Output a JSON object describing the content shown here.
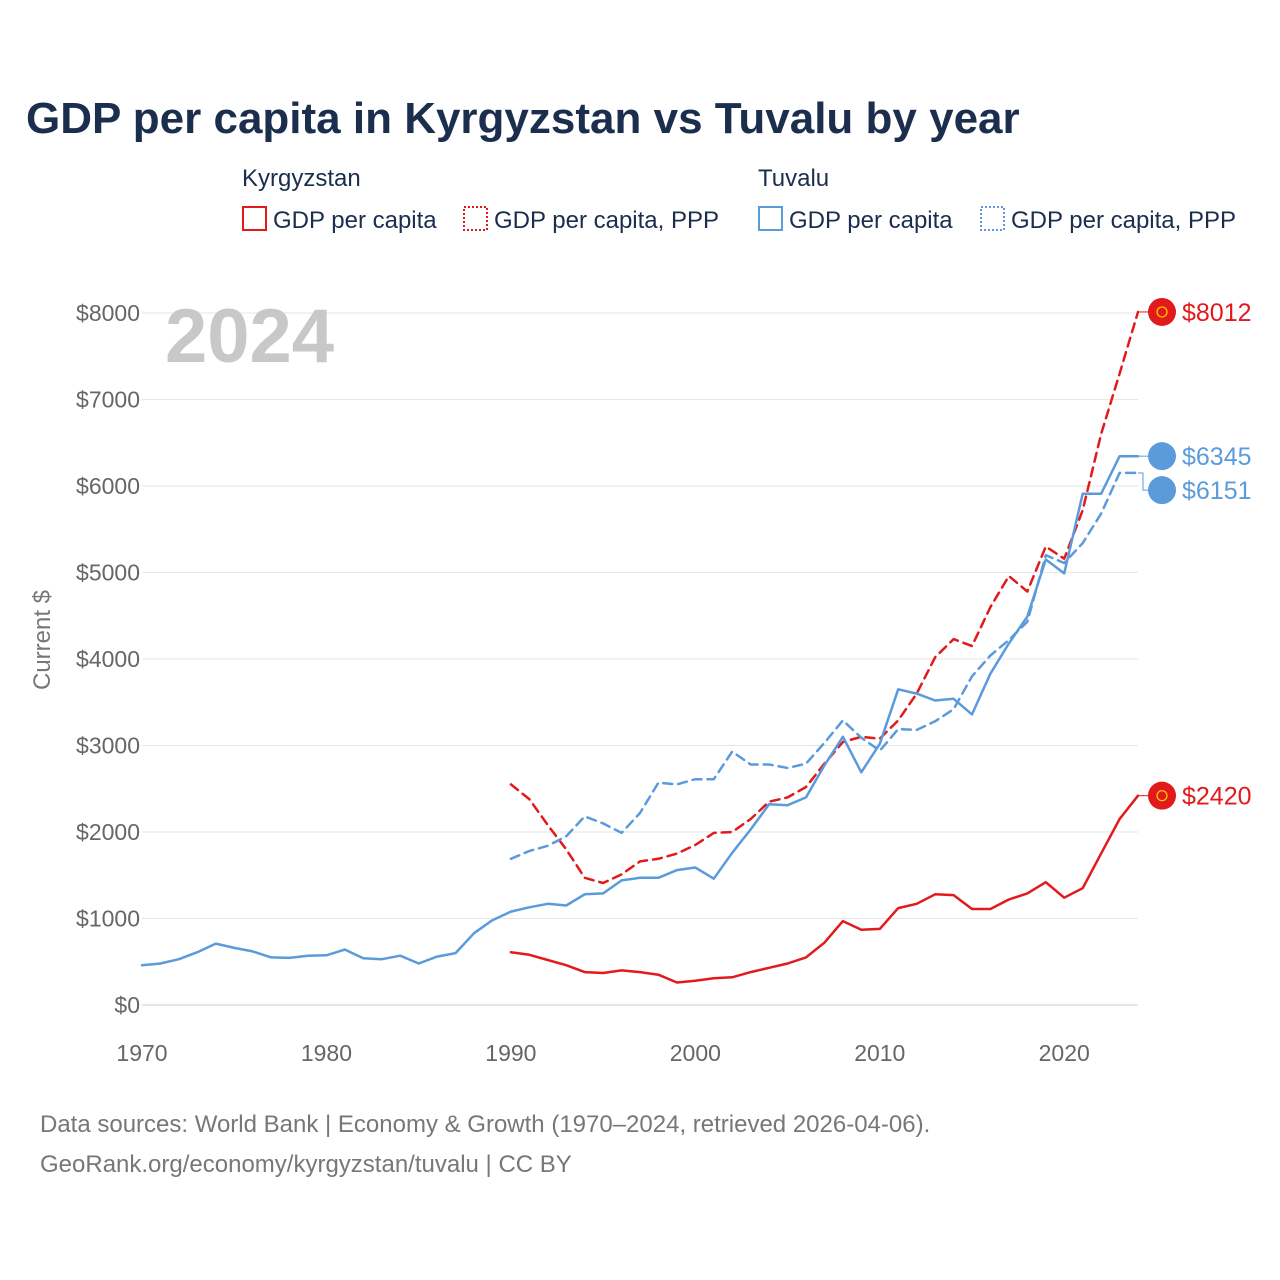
{
  "title": "GDP per capita in Kyrgyzstan vs Tuvalu by year",
  "year_watermark": "2024",
  "y_axis_label": "Current $",
  "legend": {
    "groups": [
      {
        "name": "Kyrgyzstan",
        "items": [
          {
            "label": "GDP per capita",
            "style": "solid",
            "color": "#e31a1c"
          },
          {
            "label": "GDP per capita, PPP",
            "style": "dotted",
            "color": "#e31a1c"
          }
        ]
      },
      {
        "name": "Tuvalu",
        "items": [
          {
            "label": "GDP per capita",
            "style": "solid",
            "color": "#5b9bdc"
          },
          {
            "label": "GDP per capita, PPP",
            "style": "dotted",
            "color": "#5b9bdc"
          }
        ]
      }
    ]
  },
  "footer": {
    "line1": "Data sources: World Bank | Economy & Growth (1970–2024, retrieved 2026-04-06).",
    "line2": "GeoRank.org/economy/kyrgyzstan/tuvalu | CC BY"
  },
  "chart_data": {
    "type": "line",
    "title": "GDP per capita in Kyrgyzstan vs Tuvalu by year",
    "xlabel": "",
    "ylabel": "Current $",
    "xlim": [
      1970,
      2024
    ],
    "ylim": [
      0,
      8000
    ],
    "x_ticks": [
      1970,
      1980,
      1990,
      2000,
      2010,
      2020
    ],
    "y_ticks": [
      0,
      1000,
      2000,
      3000,
      4000,
      5000,
      6000,
      7000,
      8000
    ],
    "y_tick_labels": [
      "$0",
      "$1000",
      "$2000",
      "$3000",
      "$4000",
      "$5000",
      "$6000",
      "$7000",
      "$8000"
    ],
    "grid": true,
    "series": [
      {
        "name": "Kyrgyzstan GDP per capita",
        "color": "#e31a1c",
        "dash": "solid",
        "end_label": "$2420",
        "x": [
          1990,
          1991,
          1992,
          1993,
          1994,
          1995,
          1996,
          1997,
          1998,
          1999,
          2000,
          2001,
          2002,
          2003,
          2004,
          2005,
          2006,
          2007,
          2008,
          2009,
          2010,
          2011,
          2012,
          2013,
          2014,
          2015,
          2016,
          2017,
          2018,
          2019,
          2020,
          2021,
          2022,
          2023,
          2024
        ],
        "values": [
          610,
          580,
          520,
          460,
          380,
          370,
          400,
          380,
          350,
          260,
          280,
          310,
          320,
          380,
          430,
          480,
          550,
          720,
          970,
          870,
          880,
          1120,
          1170,
          1280,
          1270,
          1110,
          1110,
          1220,
          1290,
          1420,
          1240,
          1350,
          1750,
          2150,
          2420
        ]
      },
      {
        "name": "Kyrgyzstan GDP per capita, PPP",
        "color": "#e31a1c",
        "dash": "dashed",
        "end_label": "$8012",
        "x": [
          1990,
          1991,
          1992,
          1993,
          1994,
          1995,
          1996,
          1997,
          1998,
          1999,
          2000,
          2001,
          2002,
          2003,
          2004,
          2005,
          2006,
          2007,
          2008,
          2009,
          2010,
          2011,
          2012,
          2013,
          2014,
          2015,
          2016,
          2017,
          2018,
          2019,
          2020,
          2021,
          2022,
          2023,
          2024
        ],
        "values": [
          2550,
          2380,
          2080,
          1800,
          1470,
          1410,
          1510,
          1660,
          1690,
          1750,
          1850,
          1990,
          2000,
          2150,
          2350,
          2400,
          2520,
          2790,
          3040,
          3100,
          3080,
          3290,
          3600,
          4020,
          4230,
          4150,
          4600,
          4960,
          4780,
          5300,
          5160,
          5720,
          6600,
          7300,
          8012
        ]
      },
      {
        "name": "Tuvalu GDP per capita",
        "color": "#5b9bdc",
        "dash": "solid",
        "end_label": "$6345",
        "x": [
          1970,
          1971,
          1972,
          1973,
          1974,
          1975,
          1976,
          1977,
          1978,
          1979,
          1980,
          1981,
          1982,
          1983,
          1984,
          1985,
          1986,
          1987,
          1988,
          1989,
          1990,
          1991,
          1992,
          1993,
          1994,
          1995,
          1996,
          1997,
          1998,
          1999,
          2000,
          2001,
          2002,
          2003,
          2004,
          2005,
          2006,
          2007,
          2008,
          2009,
          2010,
          2011,
          2012,
          2013,
          2014,
          2015,
          2016,
          2017,
          2018,
          2019,
          2020,
          2021,
          2022,
          2023,
          2024
        ],
        "values": [
          460,
          480,
          530,
          610,
          710,
          660,
          620,
          550,
          545,
          570,
          575,
          640,
          540,
          530,
          570,
          480,
          560,
          600,
          830,
          980,
          1080,
          1130,
          1170,
          1150,
          1280,
          1290,
          1440,
          1470,
          1470,
          1560,
          1590,
          1460,
          1760,
          2030,
          2320,
          2310,
          2400,
          2770,
          3100,
          2690,
          3020,
          3650,
          3600,
          3520,
          3540,
          3360,
          3830,
          4180,
          4490,
          5150,
          4990,
          5910,
          5910,
          6345,
          6345
        ]
      },
      {
        "name": "Tuvalu GDP per capita, PPP",
        "color": "#5b9bdc",
        "dash": "dashed",
        "end_label": "$6151",
        "x": [
          1990,
          1991,
          1992,
          1993,
          1994,
          1995,
          1996,
          1997,
          1998,
          1999,
          2000,
          2001,
          2002,
          2003,
          2004,
          2005,
          2006,
          2007,
          2008,
          2009,
          2010,
          2011,
          2012,
          2013,
          2014,
          2015,
          2016,
          2017,
          2018,
          2019,
          2020,
          2021,
          2022,
          2023,
          2024
        ],
        "values": [
          1690,
          1780,
          1840,
          1950,
          2180,
          2100,
          1990,
          2220,
          2570,
          2550,
          2610,
          2610,
          2930,
          2780,
          2780,
          2740,
          2790,
          3030,
          3290,
          3090,
          2940,
          3190,
          3180,
          3280,
          3420,
          3800,
          4040,
          4220,
          4430,
          5200,
          5110,
          5340,
          5680,
          6151,
          6151
        ]
      }
    ]
  }
}
